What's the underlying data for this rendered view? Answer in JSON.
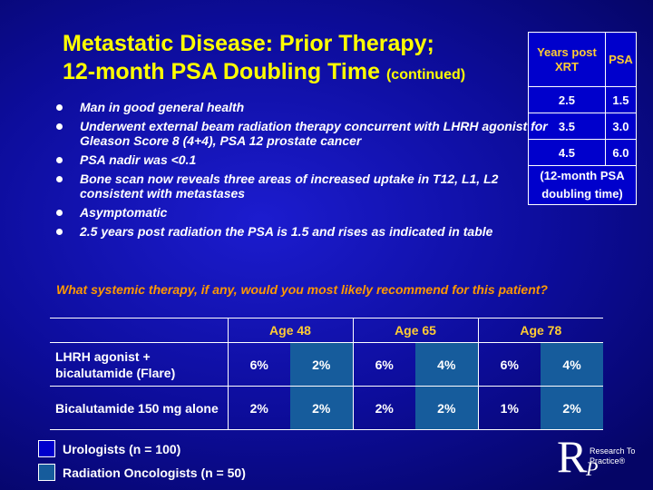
{
  "title": {
    "line1": "Metastatic Disease: Prior Therapy;",
    "line2": "12-month PSA Doubling Time",
    "suffix": "(continued)"
  },
  "psa_table": {
    "header_years": "Years post XRT",
    "header_psa": "PSA",
    "rows": [
      {
        "years": "2.5",
        "psa": "1.5"
      },
      {
        "years": "3.5",
        "psa": "3.0"
      },
      {
        "years": "4.5",
        "psa": "6.0"
      }
    ],
    "note": "(12-month PSA doubling time)"
  },
  "bullets": [
    "Man in good general health",
    "Underwent external beam radiation therapy concurrent with LHRH agonist for Gleason Score 8 (4+4), PSA 12 prostate cancer",
    "PSA nadir was <0.1",
    "Bone scan now reveals three areas of increased uptake in T12, L1, L2 consistent with metastases",
    "Asymptomatic",
    "2.5 years post radiation the PSA is 1.5 and rises as indicated in table"
  ],
  "question": "What systemic therapy, if any, would you most likely recommend for this patient?",
  "results": {
    "ages": [
      "Age 48",
      "Age 65",
      "Age 78"
    ],
    "rows": [
      {
        "label": "LHRH agonist + bicalutamide (Flare)",
        "values": [
          "6%",
          "2%",
          "6%",
          "4%",
          "6%",
          "4%"
        ]
      },
      {
        "label": "Bicalutamide 150 mg alone",
        "values": [
          "2%",
          "2%",
          "2%",
          "2%",
          "1%",
          "2%"
        ]
      }
    ]
  },
  "legend": {
    "urologists": "Urologists  (n = 100)",
    "radiation_oncologists": "Radiation Oncologists  (n = 50)"
  },
  "logo": {
    "letter_r": "R",
    "letter_p": "P",
    "text": "Research To Practice®"
  },
  "colors": {
    "title": "#ffff00",
    "question": "#ff9900",
    "age_header": "#ffcc33",
    "urologists_fill": "#0000cc",
    "radiation_fill": "#165c9c"
  }
}
